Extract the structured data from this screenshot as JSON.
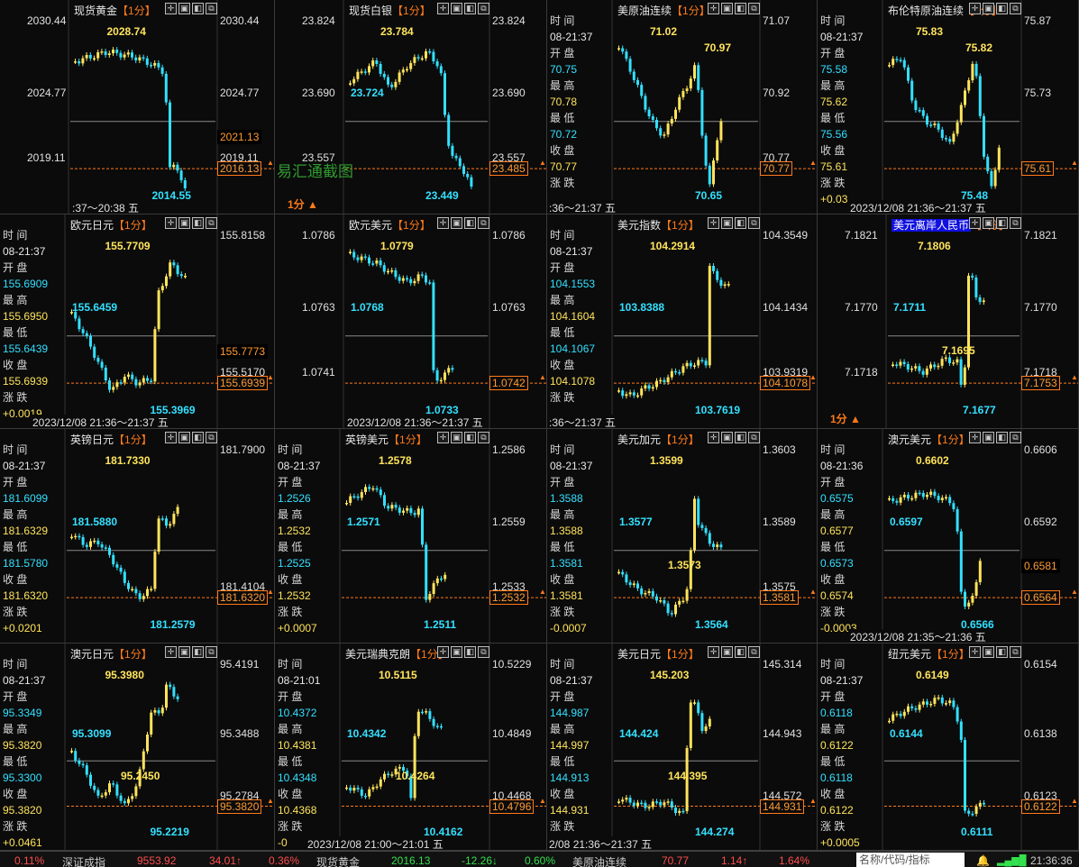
{
  "watermark": "易汇通截图",
  "period": "1分",
  "panels": [
    {
      "title": "现货黄金",
      "y_labels": [
        "2030.44",
        "2024.77",
        "2019.11"
      ],
      "hi": "2028.74",
      "lo": "2014.55",
      "cur_a": "2021.13",
      "cur_b": "2016.13",
      "time_text": ":37～20:38 五",
      "info": null
    },
    {
      "title": "现货白银",
      "y_labels": [
        "23.824",
        "23.690",
        "23.557"
      ],
      "left_labels": [
        "23.824",
        "23.690",
        "23.557"
      ],
      "hi": "23.784",
      "lo": "23.449",
      "mid": "23.724",
      "cur_b": "23.485",
      "time_text": "",
      "info": null
    },
    {
      "title": "美原油连续",
      "y_labels": [
        "71.07",
        "70.92",
        "70.77"
      ],
      "hi": "71.02",
      "hi2": "70.97",
      "lo": "70.65",
      "cur_b": "70.77",
      "time_text": ":36～21:37 五",
      "info": [
        "时 间",
        "08-21:37",
        "开 盘",
        "70.75",
        "最 高",
        "70.78",
        "最 低",
        "70.72",
        "收 盘",
        "70.77",
        "涨 跌",
        ""
      ]
    },
    {
      "title": "布伦特原油连续",
      "y_labels": [
        "75.87",
        "75.73",
        ""
      ],
      "hi": "75.83",
      "hi2": "75.82",
      "lo": "75.48",
      "cur_b": "75.61",
      "time_text": "2023/12/08 21:36～21:37 五",
      "info": [
        "时 间",
        "08-21:37",
        "开 盘",
        "75.58",
        "最 高",
        "75.62",
        "最 低",
        "75.56",
        "收 盘",
        "75.61",
        "涨 跌",
        "+0.03"
      ]
    },
    {
      "title": "欧元日元",
      "y_labels": [
        "155.8158",
        "",
        "155.5170"
      ],
      "hi": "155.7709",
      "mid": "155.6459",
      "lo": "155.3969",
      "cur_a": "155.7773",
      "cur_b": "155.6939",
      "time_text": "2023/12/08 21:36～21:37 五",
      "info": [
        "时 间",
        "08-21:37",
        "开 盘",
        "155.6909",
        "最 高",
        "155.6950",
        "最 低",
        "155.6439",
        "收 盘",
        "155.6939",
        "涨 跌",
        "+0.0019"
      ]
    },
    {
      "title": "欧元美元",
      "y_labels": [
        "1.0786",
        "1.0763",
        ""
      ],
      "left_labels": [
        "1.0786",
        "1.0763",
        "1.0741"
      ],
      "hi": "1.0779",
      "mid": "1.0768",
      "lo": "1.0733",
      "cur_b": "1.0742",
      "time_text": "2023/12/08 21:36～21:37 五",
      "info": null
    },
    {
      "title": "美元指数",
      "y_labels": [
        "104.3549",
        "104.1434",
        "103.9319"
      ],
      "hi": "104.2914",
      "mid": "103.8388",
      "lo": "103.7619",
      "cur_b": "104.1078",
      "time_text": ":36～21:37 五",
      "info": [
        "时 间",
        "08-21:37",
        "开 盘",
        "104.1553",
        "最 高",
        "104.1604",
        "最 低",
        "104.1067",
        "收 盘",
        "104.1078",
        "涨 跌",
        ""
      ]
    },
    {
      "title": "美元离岸人民币",
      "y_labels": [
        "7.1821",
        "7.1770",
        "7.1718"
      ],
      "left_labels": [
        "7.1821",
        "7.1770",
        "7.1718"
      ],
      "hi": "7.1806",
      "mid": "7.1711",
      "mid2": "7.1695",
      "lo": "7.1677",
      "cur_b": "7.1753",
      "time_text": "",
      "info": null
    },
    {
      "title": "英镑日元",
      "y_labels": [
        "181.7900",
        "",
        "181.4104"
      ],
      "hi": "181.7330",
      "mid": "181.5880",
      "lo": "181.2579",
      "cur_b": "181.6320",
      "time_text": "",
      "info": [
        "时 间",
        "08-21:37",
        "开 盘",
        "181.6099",
        "最 高",
        "181.6329",
        "最 低",
        "181.5780",
        "收 盘",
        "181.6320",
        "涨 跌",
        "+0.0201"
      ]
    },
    {
      "title": "英镑美元",
      "y_labels": [
        "1.2586",
        "1.2559",
        "1.2533"
      ],
      "hi": "1.2578",
      "mid": "1.2571",
      "lo": "1.2511",
      "cur_b": "1.2532",
      "time_text": "",
      "info": [
        "时 间",
        "08-21:37",
        "开 盘",
        "1.2526",
        "最 高",
        "1.2532",
        "最 低",
        "1.2525",
        "收 盘",
        "1.2532",
        "涨 跌",
        "+0.0007"
      ]
    },
    {
      "title": "美元加元",
      "y_labels": [
        "1.3603",
        "1.3589",
        "1.3575"
      ],
      "hi": "1.3599",
      "mid": "1.3577",
      "mid2": "1.3573",
      "lo": "1.3564",
      "cur_b": "1.3581",
      "time_text": "",
      "info": [
        "时 间",
        "08-21:37",
        "开 盘",
        "1.3588",
        "最 高",
        "1.3588",
        "最 低",
        "1.3581",
        "收 盘",
        "1.3581",
        "涨 跌",
        "-0.0007"
      ]
    },
    {
      "title": "澳元美元",
      "y_labels": [
        "0.6606",
        "0.6592",
        ""
      ],
      "hi": "0.6602",
      "mid": "0.6597",
      "lo": "0.6566",
      "cur_a": "0.6581",
      "cur_b": "0.6564",
      "time_text": "2023/12/08 21:35～21:36 五",
      "info": [
        "时 间",
        "08-21:36",
        "开 盘",
        "0.6575",
        "最 高",
        "0.6577",
        "最 低",
        "0.6573",
        "收 盘",
        "0.6574",
        "涨 跌",
        "-0.0003"
      ]
    },
    {
      "title": "澳元日元",
      "y_labels": [
        "95.4191",
        "95.3488",
        "95.2784"
      ],
      "hi": "95.3980",
      "mid": "95.3099",
      "lo": "95.2219",
      "mid2": "95.2450",
      "cur_b": "95.3820",
      "time_text": "",
      "info": [
        "时 间",
        "08-21:37",
        "开 盘",
        "95.3349",
        "最 高",
        "95.3820",
        "最 低",
        "95.3300",
        "收 盘",
        "95.3820",
        "涨 跌",
        "+0.0461"
      ]
    },
    {
      "title": "美元瑞典克朗",
      "y_labels": [
        "10.5229",
        "10.4849",
        "10.4468"
      ],
      "hi": "10.5115",
      "mid": "10.4342",
      "mid2": "10.4264",
      "lo": "10.4162",
      "cur_b": "10.4796",
      "time_text": "2023/12/08 21:00～21:01 五",
      "info": [
        "时 间",
        "08-21:01",
        "开 盘",
        "10.4372",
        "最 高",
        "10.4381",
        "最 低",
        "10.4348",
        "收 盘",
        "10.4368",
        "涨 跌",
        "-0"
      ]
    },
    {
      "title": "美元日元",
      "y_labels": [
        "145.314",
        "144.943",
        "144.572"
      ],
      "hi": "145.203",
      "mid": "144.424",
      "mid2": "144.395",
      "lo": "144.274",
      "cur_b": "144.931",
      "time_text": "2/08 21:36～21:37 五",
      "info": [
        "时 间",
        "08-21:37",
        "开 盘",
        "144.987",
        "最 高",
        "144.997",
        "最 低",
        "144.913",
        "收 盘",
        "144.931",
        "涨 跌",
        ""
      ]
    },
    {
      "title": "纽元美元",
      "y_labels": [
        "0.6154",
        "0.6138",
        "0.6123"
      ],
      "hi": "0.6149",
      "mid": "0.6144",
      "lo": "0.6111",
      "cur_b": "0.6122",
      "time_text": "",
      "info": [
        "时 间",
        "08-21:37",
        "开 盘",
        "0.6118",
        "最 高",
        "0.6122",
        "最 低",
        "0.6118",
        "收 盘",
        "0.6122",
        "涨 跌",
        "+0.0005"
      ]
    }
  ],
  "status": {
    "pct1": "0.11%",
    "idx_name": "深证成指",
    "idx_val": "9553.92",
    "idx_chg": "34.01↑",
    "idx_pct": "0.36%",
    "gold_name": "现货黄金",
    "gold_val": "2016.13",
    "gold_chg": "-12.26↓",
    "gold_pct": "0.60%",
    "oil_name": "美原油连续",
    "oil_val": "70.77",
    "oil_chg": "1.14↑",
    "oil_pct": "1.64%",
    "search_placeholder": "名称/代码/指标",
    "clock": "21:36:36"
  },
  "colors": {
    "up": "#ffe45c",
    "down": "#33e0ff",
    "accent": "#ff7a1a"
  }
}
